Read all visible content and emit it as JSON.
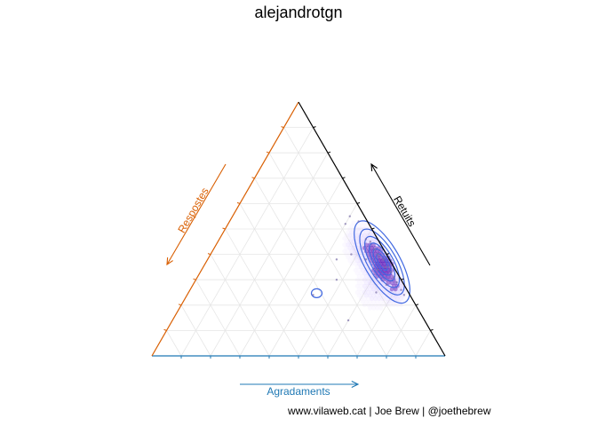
{
  "title": "alejandrotgn",
  "caption": "www.vilaweb.cat | Joe Brew | @joethebrew",
  "chart_data": {
    "type": "ternary-density",
    "axes": {
      "bottom": {
        "label": "Agradaments",
        "color": "#1f78b4"
      },
      "left": {
        "label": "Respostes",
        "color": "#d95f02"
      },
      "right": {
        "label": "Retuits",
        "color": "#000000"
      }
    },
    "grid": true,
    "grid_ticks": [
      0.1,
      0.2,
      0.3,
      0.4,
      0.5,
      0.6,
      0.7,
      0.8,
      0.9
    ],
    "colors": {
      "contour": "#4169e1",
      "density_high": "#4b00b4",
      "density_low": "#c8b4ff",
      "grid": "#e6e6e6"
    },
    "points": [
      {
        "likes": 0.4,
        "retweets": 0.55,
        "replies": 0.05
      },
      {
        "likes": 0.44,
        "retweets": 0.53,
        "replies": 0.03
      },
      {
        "likes": 0.5,
        "retweets": 0.46,
        "replies": 0.04
      },
      {
        "likes": 0.52,
        "retweets": 0.45,
        "replies": 0.03
      },
      {
        "likes": 0.55,
        "retweets": 0.42,
        "replies": 0.03
      },
      {
        "likes": 0.57,
        "retweets": 0.4,
        "replies": 0.03
      },
      {
        "likes": 0.58,
        "retweets": 0.39,
        "replies": 0.03
      },
      {
        "likes": 0.6,
        "retweets": 0.38,
        "replies": 0.02
      },
      {
        "likes": 0.62,
        "retweets": 0.35,
        "replies": 0.03
      },
      {
        "likes": 0.63,
        "retweets": 0.35,
        "replies": 0.02
      },
      {
        "likes": 0.65,
        "retweets": 0.33,
        "replies": 0.02
      },
      {
        "likes": 0.67,
        "retweets": 0.31,
        "replies": 0.02
      },
      {
        "likes": 0.69,
        "retweets": 0.29,
        "replies": 0.02
      },
      {
        "likes": 0.72,
        "retweets": 0.26,
        "replies": 0.02
      },
      {
        "likes": 0.74,
        "retweets": 0.24,
        "replies": 0.02
      },
      {
        "likes": 0.54,
        "retweets": 0.38,
        "replies": 0.08
      },
      {
        "likes": 0.6,
        "retweets": 0.34,
        "replies": 0.06
      },
      {
        "likes": 0.66,
        "retweets": 0.28,
        "replies": 0.06
      },
      {
        "likes": 0.48,
        "retweets": 0.4,
        "replies": 0.12
      },
      {
        "likes": 0.64,
        "retweets": 0.25,
        "replies": 0.11
      },
      {
        "likes": 0.44,
        "retweets": 0.38,
        "replies": 0.18
      },
      {
        "likes": 0.43,
        "retweets": 0.24,
        "replies": 0.33
      },
      {
        "likes": 0.48,
        "retweets": 0.3,
        "replies": 0.22
      },
      {
        "likes": 0.6,
        "retweets": 0.14,
        "replies": 0.26
      },
      {
        "likes": 0.4,
        "retweets": 0.52,
        "replies": 0.08
      }
    ]
  }
}
